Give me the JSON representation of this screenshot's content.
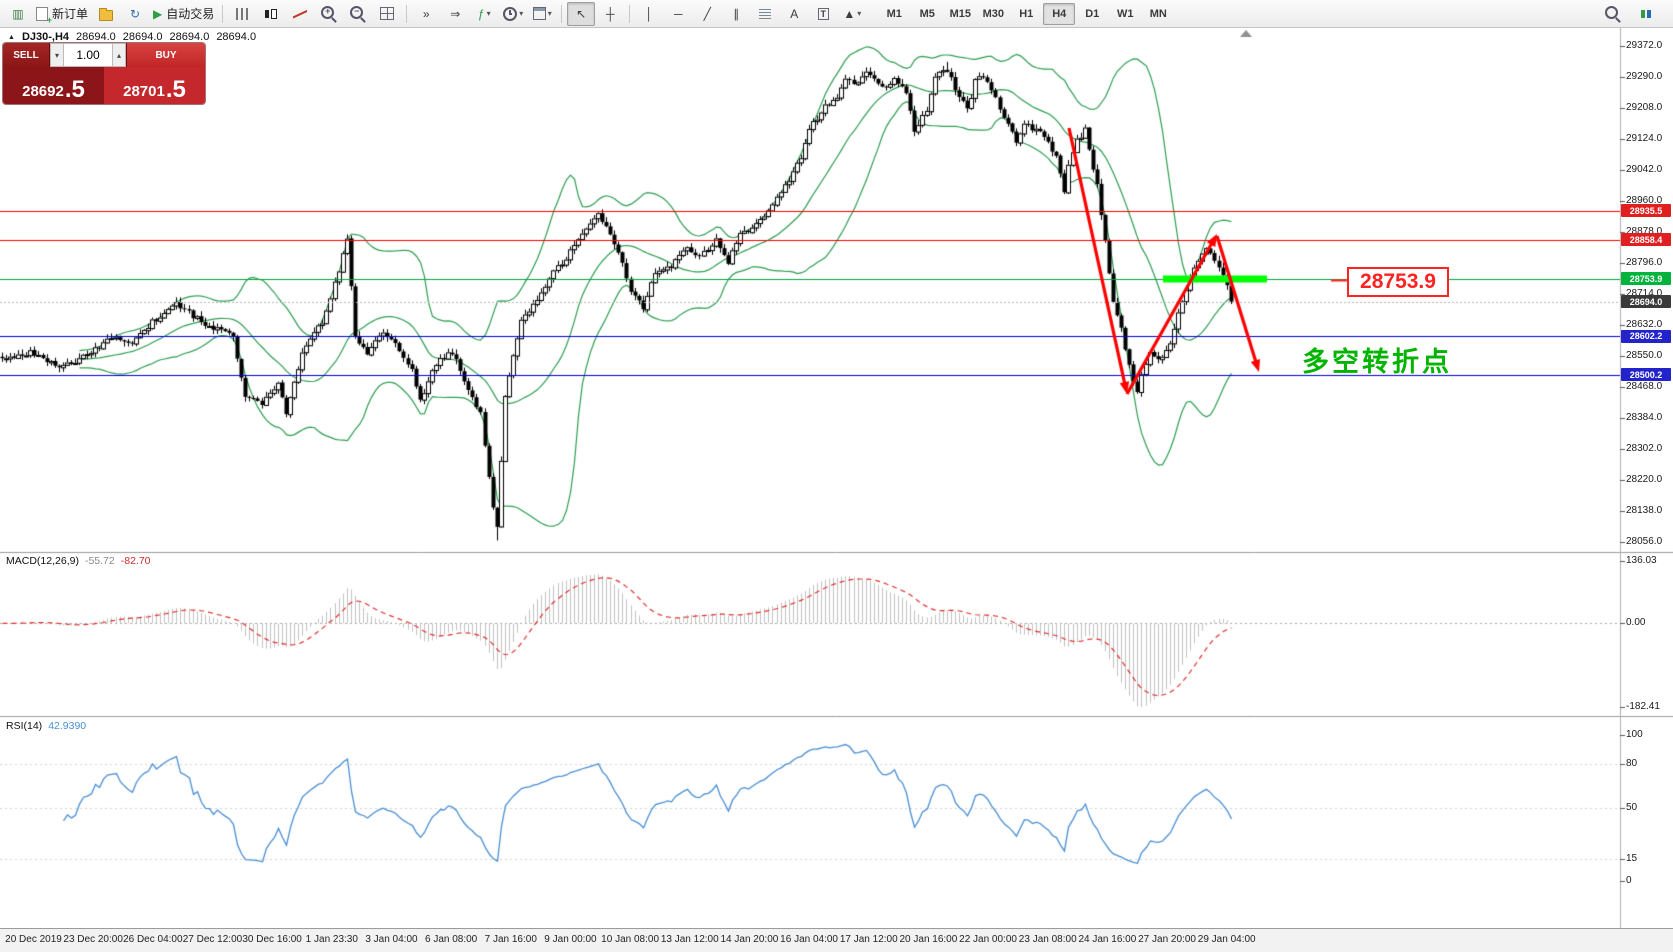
{
  "toolbar": {
    "left_items": [
      {
        "name": "terminal-chart-icon",
        "glyph": "▥",
        "color": "#3a7d44"
      },
      {
        "name": "new-order-button",
        "icon": "doc",
        "label": "新订单"
      },
      {
        "name": "profiles-icon",
        "icon": "folder"
      },
      {
        "name": "refresh-icon",
        "glyph": "↻",
        "color": "#2b6cb0"
      },
      {
        "name": "auto-trading-button",
        "glyph": "▶",
        "color": "#2f9e44",
        "label": "自动交易"
      },
      {
        "sep": true
      },
      {
        "name": "bar-chart-type-icon",
        "icon": "bars"
      },
      {
        "name": "candlestick-chart-type-icon",
        "icon": "candles"
      },
      {
        "name": "line-chart-type-icon",
        "icon": "linechart"
      },
      {
        "name": "zoom-in-icon",
        "icon": "magplus"
      },
      {
        "name": "zoom-out-icon",
        "icon": "magminus"
      },
      {
        "name": "tile-windows-icon",
        "icon": "grid"
      },
      {
        "sep": true
      },
      {
        "name": "auto-scroll-icon",
        "glyph": "»"
      },
      {
        "name": "chart-shift-icon",
        "glyph": "⇒"
      },
      {
        "name": "indicators-icon",
        "glyph": "ƒ",
        "color": "#2f9e44",
        "dropdown": true
      },
      {
        "name": "periods-icon",
        "icon": "clock",
        "dropdown": true
      },
      {
        "name": "templates-icon",
        "icon": "template",
        "dropdown": true
      },
      {
        "sep": true
      },
      {
        "name": "cursor-icon",
        "glyph": "↖",
        "active": true
      },
      {
        "name": "crosshair-icon",
        "glyph": "┼"
      },
      {
        "sep": true
      },
      {
        "name": "vertical-line-icon",
        "glyph": "│"
      },
      {
        "name": "horizontal-line-icon",
        "glyph": "─"
      },
      {
        "name": "trendline-icon",
        "glyph": "╱"
      },
      {
        "name": "equidistant-channel-icon",
        "glyph": "∥"
      },
      {
        "name": "fibonacci-icon",
        "icon": "fibo"
      },
      {
        "name": "text-icon",
        "glyph": "A"
      },
      {
        "name": "text-label-icon",
        "glyph": "T",
        "boxed": true
      },
      {
        "name": "arrows-tool-icon",
        "glyph": "▲",
        "dropdown": true
      }
    ],
    "timeframes": [
      {
        "label": "M1"
      },
      {
        "label": "M5"
      },
      {
        "label": "M15"
      },
      {
        "label": "M30"
      },
      {
        "label": "H1"
      },
      {
        "label": "H4",
        "active": true
      },
      {
        "label": "D1"
      },
      {
        "label": "W1"
      },
      {
        "label": "MN"
      }
    ],
    "right_items": [
      {
        "name": "search-icon",
        "icon": "magplain"
      },
      {
        "name": "connection-status-icon",
        "icon": "conn"
      }
    ]
  },
  "ohlc": {
    "marker": "▲",
    "symbol_period": "DJ30-,H4",
    "open": "28694.0",
    "high": "28694.0",
    "low": "28694.0",
    "close": "28694.0"
  },
  "trade_panel": {
    "sell_label": "SELL",
    "buy_label": "BUY",
    "volume": "1.00",
    "spin_down_glyph": "▾",
    "spin_up_glyph": "▴",
    "sell_price_main": "28692",
    "sell_price_pips": ".5",
    "buy_price_main": "28701",
    "buy_price_pips": ".5"
  },
  "price_axis": {
    "ticks": [
      "29372.0",
      "29290.0",
      "29208.0",
      "29124.0",
      "29042.0",
      "28960.0",
      "28878.0",
      "28796.0",
      "28714.0",
      "28632.0",
      "28550.0",
      "28468.0",
      "28384.0",
      "28302.0",
      "28220.0",
      "28138.0",
      "28056.0"
    ]
  },
  "levels": {
    "hlines": [
      {
        "price": 28935.5,
        "label": "28935.5",
        "line_color": "#ff0000",
        "tag_color": "#e02020"
      },
      {
        "price": 28858.4,
        "label": "28858.4",
        "line_color": "#ff0000",
        "tag_color": "#e02020"
      },
      {
        "price": 28753.9,
        "label": "28753.9",
        "line_color": "#00a43c",
        "tag_color": "#00b33c"
      },
      {
        "price": 28602.2,
        "label": "28602.2",
        "line_color": "#0000dd",
        "tag_color": "#2323cc"
      },
      {
        "price": 28500.2,
        "label": "28500.2",
        "line_color": "#0000dd",
        "tag_color": "#2323cc"
      }
    ],
    "current_price": {
      "price": 28694.0,
      "label": "28694.0",
      "tag_color": "#3a3a3a"
    }
  },
  "annotations": {
    "price_callout": {
      "text": "28753.9",
      "color": "#ff2222"
    },
    "cn_note": {
      "text": "多空转折点",
      "color": "#00b400"
    },
    "highlight_color": "#00ff00",
    "arrow_color": "#ff0000"
  },
  "macd_panel": {
    "title": "MACD(12,26,9)",
    "main_value": "-55.72",
    "signal_value": "-82.70",
    "axis": [
      {
        "label": "136.03",
        "value": 136.03
      },
      {
        "label": "0.00",
        "value": 0
      },
      {
        "label": "-182.41",
        "value": -182.41
      }
    ]
  },
  "rsi_panel": {
    "title": "RSI(14)",
    "value": "42.9390",
    "axis": [
      {
        "label": "100",
        "value": 100
      },
      {
        "label": "80",
        "value": 80
      },
      {
        "label": "50",
        "value": 50
      },
      {
        "label": "15",
        "value": 15
      },
      {
        "label": "0",
        "value": 0
      }
    ]
  },
  "time_axis": {
    "labels": [
      "20 Dec 2019",
      "23 Dec 20:00",
      "26 Dec 04:00",
      "27 Dec 12:00",
      "30 Dec 16:00",
      "1 Jan 23:30",
      "3 Jan 04:00",
      "6 Jan 08:00",
      "7 Jan 16:00",
      "9 Jan 00:00",
      "10 Jan 08:00",
      "13 Jan 12:00",
      "14 Jan 20:00",
      "16 Jan 04:00",
      "17 Jan 12:00",
      "20 Jan 16:00",
      "22 Jan 00:00",
      "23 Jan 08:00",
      "24 Jan 16:00",
      "27 Jan 20:00",
      "29 Jan 04:00"
    ]
  },
  "chart_data": {
    "type": "candlestick",
    "symbol": "DJ30-",
    "period": "H4",
    "visible_price_range": [
      28056.0,
      29372.0
    ],
    "bars_visible": 304,
    "price_path_anchors": [
      [
        0,
        28540
      ],
      [
        7,
        28560
      ],
      [
        15,
        28520
      ],
      [
        22,
        28560
      ],
      [
        27,
        28600
      ],
      [
        32,
        28580
      ],
      [
        37,
        28640
      ],
      [
        43,
        28690
      ],
      [
        49,
        28640
      ],
      [
        57,
        28600
      ],
      [
        60,
        28440
      ],
      [
        64,
        28420
      ],
      [
        68,
        28480
      ],
      [
        70,
        28400
      ],
      [
        74,
        28560
      ],
      [
        79,
        28640
      ],
      [
        82,
        28740
      ],
      [
        85,
        28860
      ],
      [
        87,
        28600
      ],
      [
        90,
        28560
      ],
      [
        94,
        28610
      ],
      [
        97,
        28580
      ],
      [
        101,
        28510
      ],
      [
        103,
        28430
      ],
      [
        107,
        28530
      ],
      [
        111,
        28560
      ],
      [
        115,
        28460
      ],
      [
        118,
        28400
      ],
      [
        121,
        28150
      ],
      [
        122,
        28100
      ],
      [
        124,
        28450
      ],
      [
        128,
        28640
      ],
      [
        132,
        28700
      ],
      [
        135,
        28760
      ],
      [
        139,
        28810
      ],
      [
        143,
        28880
      ],
      [
        147,
        28930
      ],
      [
        150,
        28870
      ],
      [
        153,
        28800
      ],
      [
        155,
        28720
      ],
      [
        158,
        28680
      ],
      [
        161,
        28770
      ],
      [
        165,
        28790
      ],
      [
        169,
        28840
      ],
      [
        172,
        28810
      ],
      [
        176,
        28860
      ],
      [
        179,
        28800
      ],
      [
        182,
        28870
      ],
      [
        186,
        28900
      ],
      [
        190,
        28950
      ],
      [
        193,
        29000
      ],
      [
        197,
        29080
      ],
      [
        199,
        29150
      ],
      [
        202,
        29200
      ],
      [
        206,
        29240
      ],
      [
        208,
        29280
      ],
      [
        211,
        29270
      ],
      [
        213,
        29300
      ],
      [
        215,
        29280
      ],
      [
        218,
        29260
      ],
      [
        220,
        29280
      ],
      [
        223,
        29250
      ],
      [
        225,
        29150
      ],
      [
        228,
        29200
      ],
      [
        230,
        29290
      ],
      [
        233,
        29310
      ],
      [
        235,
        29260
      ],
      [
        238,
        29200
      ],
      [
        240,
        29280
      ],
      [
        242,
        29290
      ],
      [
        245,
        29240
      ],
      [
        247,
        29180
      ],
      [
        250,
        29120
      ],
      [
        252,
        29160
      ],
      [
        255,
        29150
      ],
      [
        257,
        29130
      ],
      [
        260,
        29080
      ],
      [
        262,
        28980
      ],
      [
        263,
        29060
      ],
      [
        265,
        29120
      ],
      [
        267,
        29150
      ],
      [
        270,
        29000
      ],
      [
        272,
        28850
      ],
      [
        274,
        28700
      ],
      [
        276,
        28620
      ],
      [
        278,
        28520
      ],
      [
        280,
        28450
      ],
      [
        281,
        28500
      ],
      [
        283,
        28560
      ],
      [
        285,
        28540
      ],
      [
        287,
        28560
      ],
      [
        289,
        28620
      ],
      [
        291,
        28700
      ],
      [
        293,
        28760
      ],
      [
        295,
        28800
      ],
      [
        297,
        28840
      ],
      [
        298,
        28820
      ],
      [
        300,
        28780
      ],
      [
        302,
        28740
      ],
      [
        303,
        28694
      ]
    ],
    "indicators": [
      {
        "name": "Bollinger Bands",
        "color": "#2f9e52"
      },
      {
        "name": "MACD",
        "params": [
          12,
          26,
          9
        ],
        "current": [
          -55.72,
          -82.7
        ],
        "axis_range": [
          136.03,
          -182.41
        ]
      },
      {
        "name": "RSI",
        "params": [
          14
        ],
        "current": 42.939,
        "axis_levels": [
          100,
          80,
          50,
          15,
          0
        ]
      }
    ]
  }
}
